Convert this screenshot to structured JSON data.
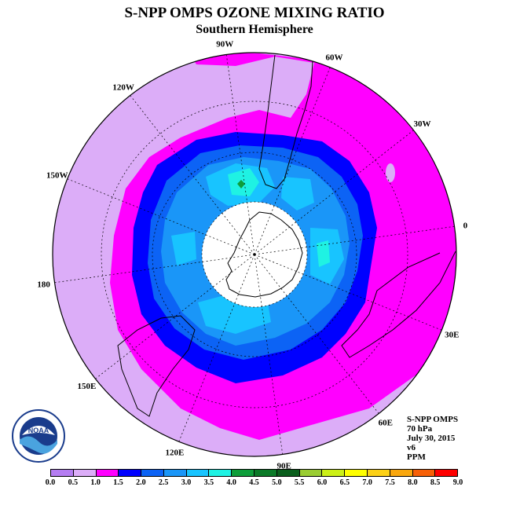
{
  "title": "S-NPP OMPS OZONE MIXING RATIO",
  "subtitle": "Southern Hemisphere",
  "longitude_labels": [
    "90W",
    "60W",
    "30W",
    "0",
    "30E",
    "60E",
    "90E",
    "120E",
    "150E",
    "180",
    "150W",
    "120W"
  ],
  "info": {
    "instrument": "S-NPP OMPS",
    "pressure": "70 hPa",
    "date": "July 30, 2015",
    "version": "v6",
    "units": "PPM"
  },
  "colorbar": {
    "ticks": [
      "0.0",
      "0.5",
      "1.0",
      "1.5",
      "2.0",
      "2.5",
      "3.0",
      "3.5",
      "4.0",
      "4.5",
      "5.0",
      "5.5",
      "6.0",
      "6.5",
      "7.0",
      "7.5",
      "8.0",
      "8.5",
      "9.0"
    ],
    "colors": [
      "#b57df2",
      "#dcadf8",
      "#ff00ff",
      "#0000ff",
      "#0c63f5",
      "#1a96f8",
      "#18c4ff",
      "#1ff2e3",
      "#0e9e3a",
      "#0b7a28",
      "#0a5e1c",
      "#9acd32",
      "#ccf016",
      "#ffff00",
      "#fcd116",
      "#f9a70e",
      "#f76007",
      "#ff0000",
      "#c00000",
      "#8b5a3c"
    ]
  },
  "logo_text": "NOAA",
  "colors": {
    "background": "#ffffff",
    "land_outline": "#000000",
    "pole_fill": "#ffffff"
  }
}
